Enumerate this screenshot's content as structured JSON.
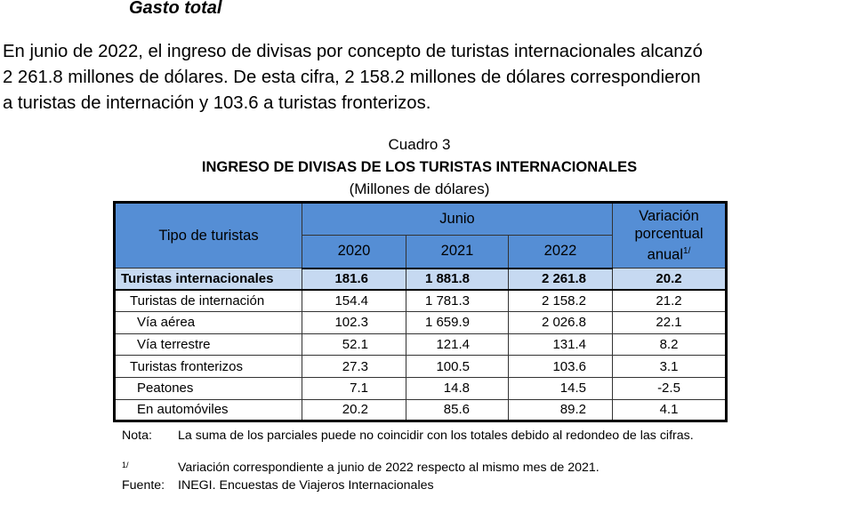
{
  "heading": "Gasto total",
  "paragraph": [
    "En junio de 2022, el ingreso de divisas por concepto de turistas internacionales alcanzó",
    "2 261.8 millones de dólares. De esta cifra, 2 158.2 millones de dólares correspondieron",
    "a turistas de internación y 103.6 a turistas fronterizos."
  ],
  "table": {
    "caption": "Cuadro 3",
    "title": "INGRESO DE DIVISAS DE LOS TURISTAS INTERNACIONALES",
    "units": "(Millones de dólares)",
    "header": {
      "row_label": "Tipo de turistas",
      "group": "Junio",
      "years": [
        "2020",
        "2021",
        "2022"
      ],
      "variation": [
        "Variación",
        "porcentual",
        "anual"
      ],
      "variation_note": "1/"
    },
    "rows": [
      [
        "Turistas internacionales",
        "181.6",
        "1 881.8",
        "2 261.8",
        "20.2"
      ],
      [
        "Turistas de internación",
        "154.4",
        "1 781.3",
        "2 158.2",
        "21.2"
      ],
      [
        "Vía aérea",
        "102.3",
        "1 659.9",
        "2 026.8",
        "22.1"
      ],
      [
        "Vía terrestre",
        "52.1",
        "121.4",
        "131.4",
        "8.2"
      ],
      [
        "Turistas fronterizos",
        "27.3",
        "100.5",
        "103.6",
        "3.1"
      ],
      [
        "Peatones",
        "7.1",
        "14.8",
        "14.5",
        "-2.5"
      ],
      [
        "En automóviles",
        "20.2",
        "85.6",
        "89.2",
        "4.1"
      ]
    ]
  },
  "notes": [
    {
      "label": "Nota:",
      "text": "La suma de los parciales puede no coincidir con los totales debido al redondeo de las cifras."
    },
    {
      "label": "1/",
      "text": "Variación correspondiente a junio de 2022 respecto al mismo mes de 2021."
    },
    {
      "label": "Fuente:",
      "text": "INEGI. Encuestas de Viajeros Internacionales"
    }
  ]
}
